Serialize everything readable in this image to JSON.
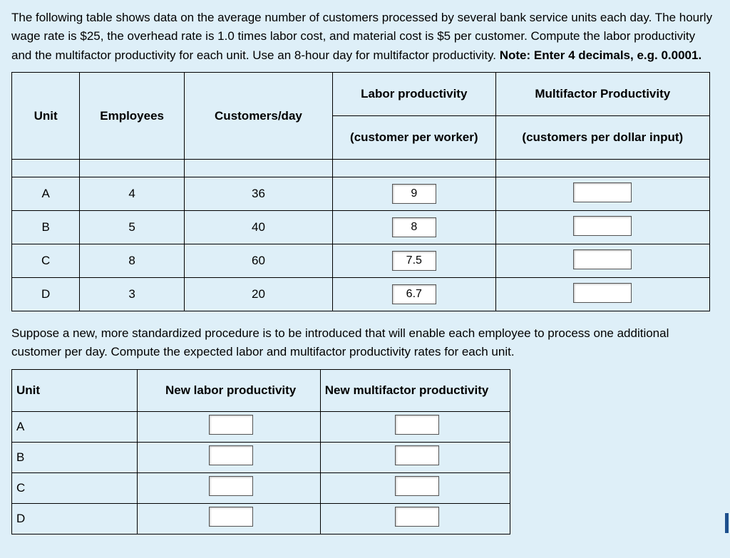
{
  "intro": {
    "p1a": "The following table shows data on the average number of customers processed by several bank service units each day. The hourly wage rate is $25, the overhead rate is 1.0 times labor cost, and material cost is $5 per customer. Compute the labor productivity and the multifactor productivity for each unit. Use an 8-hour day for multifactor productivity. ",
    "p1b_bold": "Note: Enter 4 decimals, e.g. 0.0001."
  },
  "table1": {
    "headers": {
      "unit": "Unit",
      "employees": "Employees",
      "customers": "Customers/day",
      "labor_top": "Labor productivity",
      "labor_sub": "(customer  per worker)",
      "mfp_top": "Multifactor Productivity",
      "mfp_sub": "(customers per dollar input)"
    },
    "rows": [
      {
        "unit": "A",
        "employees": "4",
        "customers": "36",
        "labor": "9",
        "mfp": ""
      },
      {
        "unit": "B",
        "employees": "5",
        "customers": "40",
        "labor": "8",
        "mfp": ""
      },
      {
        "unit": "C",
        "employees": "8",
        "customers": "60",
        "labor": "7.5",
        "mfp": ""
      },
      {
        "unit": "D",
        "employees": "3",
        "customers": "20",
        "labor": "6.7",
        "mfp": ""
      }
    ]
  },
  "mid_text": "Suppose a new, more standardized procedure is to be introduced that will enable each employee to process one additional customer per day. Compute the expected labor and multifactor productivity rates for each unit.",
  "table2": {
    "headers": {
      "unit": "Unit",
      "nlp": "New labor productivity",
      "nmf": "New multifactor productivity"
    },
    "rows": [
      {
        "unit": "A",
        "nlp": "",
        "nmf": ""
      },
      {
        "unit": "B",
        "nlp": "",
        "nmf": ""
      },
      {
        "unit": "C",
        "nlp": "",
        "nmf": ""
      },
      {
        "unit": "D",
        "nlp": "",
        "nmf": ""
      }
    ]
  },
  "style": {
    "background": "#deeff8",
    "border": "#000000",
    "input_bg": "#ffffff"
  }
}
